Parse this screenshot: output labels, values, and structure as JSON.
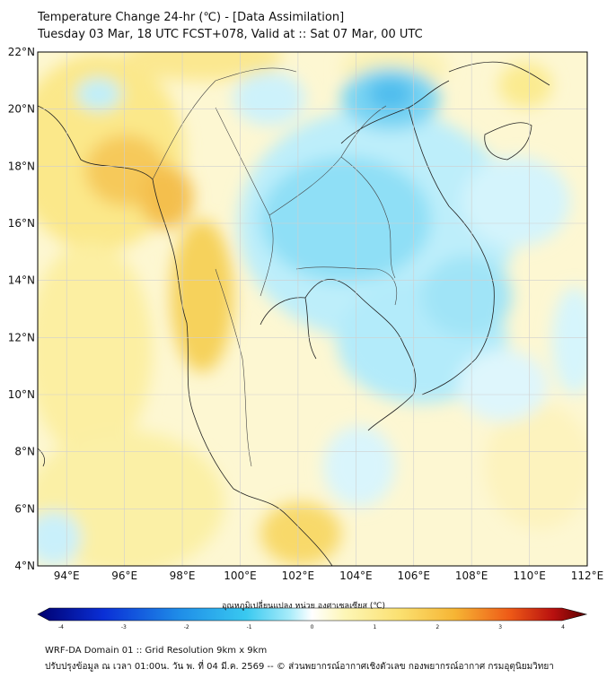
{
  "header": {
    "title": "Temperature Change 24-hr (℃) - [Data Assimilation]",
    "subtitle": "Tuesday 03 Mar, 18 UTC FCST+078, Valid at :: Sat 07 Mar, 00 UTC"
  },
  "map": {
    "lon_range": [
      93,
      112
    ],
    "lat_range": [
      4,
      22
    ],
    "lat_ticks": [
      "22°N",
      "20°N",
      "18°N",
      "16°N",
      "14°N",
      "12°N",
      "10°N",
      "8°N",
      "6°N",
      "4°N"
    ],
    "lon_ticks": [
      "94°E",
      "96°E",
      "98°E",
      "100°E",
      "102°E",
      "104°E",
      "106°E",
      "108°E",
      "110°E",
      "112°E"
    ]
  },
  "colorbar": {
    "label": "อุณหภูมิเปลี่ยนแปลง หน่วย องศาเซลเซียส (℃)",
    "ticks": [
      "-4",
      "-3",
      "-2",
      "-1",
      "0",
      "1",
      "2",
      "3",
      "4"
    ],
    "range": [
      -4,
      4
    ]
  },
  "footer": {
    "line1": "WRF-DA Domain 01 :: Grid Resolution 9km x 9km",
    "line2": "ปรับปรุงข้อมูล ณ เวลา 01:00น. วัน พ. ที่ 04 มี.ค. 2569 -- © ส่วนพยากรณ์อากาศเชิงตัวเลข กองพยากรณ์อากาศ กรมอุตุนิยมวิทยา"
  }
}
